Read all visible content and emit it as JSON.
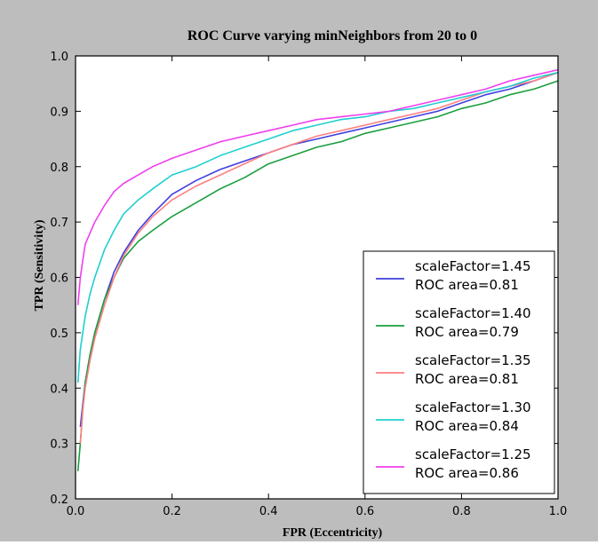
{
  "colors": {
    "page_background": "#bdbdbd",
    "plot_background": "#ffffff",
    "axis": "#000000"
  },
  "chart_data": {
    "type": "line",
    "title": "ROC Curve varying minNeighbors from 20 to 0",
    "xlabel": "FPR (Eccentricity)",
    "ylabel": "TPR (Sensitivity)",
    "xlim": [
      0.0,
      1.0
    ],
    "ylim": [
      0.2,
      1.0
    ],
    "xticks": [
      "0.0",
      "0.2",
      "0.4",
      "0.6",
      "0.8",
      "1.0"
    ],
    "yticks": [
      "0.2",
      "0.3",
      "0.4",
      "0.5",
      "0.6",
      "0.7",
      "0.8",
      "0.9",
      "1.0"
    ],
    "grid": false,
    "legend_position": "bottom-right",
    "series": [
      {
        "name": "scaleFactor=1.45",
        "name2": "ROC area=0.81",
        "color": "#3f3fdf",
        "x": [
          0.01,
          0.015,
          0.02,
          0.03,
          0.04,
          0.06,
          0.08,
          0.1,
          0.13,
          0.16,
          0.2,
          0.25,
          0.3,
          0.35,
          0.4,
          0.45,
          0.5,
          0.55,
          0.6,
          0.65,
          0.7,
          0.75,
          0.8,
          0.85,
          0.9,
          0.95,
          1.0
        ],
        "y": [
          0.33,
          0.37,
          0.41,
          0.46,
          0.5,
          0.56,
          0.61,
          0.645,
          0.685,
          0.715,
          0.75,
          0.775,
          0.795,
          0.81,
          0.825,
          0.84,
          0.85,
          0.86,
          0.87,
          0.88,
          0.89,
          0.9,
          0.915,
          0.93,
          0.94,
          0.955,
          0.97
        ]
      },
      {
        "name": "scaleFactor=1.40",
        "name2": "ROC area=0.79",
        "color": "#1b9e3e",
        "x": [
          0.005,
          0.01,
          0.015,
          0.02,
          0.03,
          0.04,
          0.06,
          0.08,
          0.1,
          0.13,
          0.16,
          0.2,
          0.25,
          0.3,
          0.35,
          0.4,
          0.45,
          0.5,
          0.55,
          0.6,
          0.65,
          0.7,
          0.75,
          0.8,
          0.85,
          0.9,
          0.95,
          1.0
        ],
        "y": [
          0.25,
          0.3,
          0.36,
          0.41,
          0.46,
          0.5,
          0.56,
          0.6,
          0.635,
          0.665,
          0.685,
          0.71,
          0.735,
          0.76,
          0.78,
          0.805,
          0.82,
          0.835,
          0.845,
          0.86,
          0.87,
          0.88,
          0.89,
          0.905,
          0.915,
          0.93,
          0.94,
          0.955
        ]
      },
      {
        "name": "scaleFactor=1.35",
        "name2": "ROC area=0.81",
        "color": "#ff7f7f",
        "x": [
          0.01,
          0.015,
          0.02,
          0.03,
          0.04,
          0.06,
          0.08,
          0.1,
          0.13,
          0.16,
          0.2,
          0.25,
          0.3,
          0.35,
          0.4,
          0.45,
          0.5,
          0.55,
          0.6,
          0.65,
          0.7,
          0.75,
          0.8,
          0.85,
          0.9,
          0.95,
          1.0
        ],
        "y": [
          0.3,
          0.36,
          0.4,
          0.45,
          0.49,
          0.55,
          0.6,
          0.64,
          0.68,
          0.71,
          0.74,
          0.765,
          0.785,
          0.805,
          0.825,
          0.84,
          0.855,
          0.865,
          0.875,
          0.885,
          0.895,
          0.905,
          0.92,
          0.935,
          0.945,
          0.955,
          0.97
        ]
      },
      {
        "name": "scaleFactor=1.30",
        "name2": "ROC area=0.84",
        "color": "#1fcfcf",
        "x": [
          0.005,
          0.01,
          0.015,
          0.02,
          0.03,
          0.04,
          0.06,
          0.08,
          0.1,
          0.13,
          0.16,
          0.2,
          0.25,
          0.3,
          0.35,
          0.4,
          0.45,
          0.5,
          0.55,
          0.6,
          0.65,
          0.7,
          0.75,
          0.8,
          0.85,
          0.9,
          0.95,
          1.0
        ],
        "y": [
          0.41,
          0.47,
          0.5,
          0.53,
          0.57,
          0.6,
          0.65,
          0.685,
          0.715,
          0.74,
          0.76,
          0.785,
          0.8,
          0.82,
          0.835,
          0.85,
          0.865,
          0.875,
          0.885,
          0.89,
          0.9,
          0.905,
          0.915,
          0.925,
          0.935,
          0.945,
          0.96,
          0.97
        ]
      },
      {
        "name": "scaleFactor=1.25",
        "name2": "ROC area=0.86",
        "color": "#ef3fef",
        "x": [
          0.005,
          0.01,
          0.015,
          0.02,
          0.03,
          0.04,
          0.06,
          0.08,
          0.1,
          0.13,
          0.16,
          0.2,
          0.25,
          0.3,
          0.35,
          0.4,
          0.45,
          0.5,
          0.55,
          0.6,
          0.65,
          0.7,
          0.75,
          0.8,
          0.85,
          0.9,
          0.95,
          1.0
        ],
        "y": [
          0.55,
          0.6,
          0.63,
          0.66,
          0.68,
          0.7,
          0.73,
          0.755,
          0.77,
          0.785,
          0.8,
          0.815,
          0.83,
          0.845,
          0.855,
          0.865,
          0.875,
          0.885,
          0.89,
          0.895,
          0.9,
          0.91,
          0.92,
          0.93,
          0.94,
          0.955,
          0.965,
          0.975
        ]
      }
    ]
  }
}
